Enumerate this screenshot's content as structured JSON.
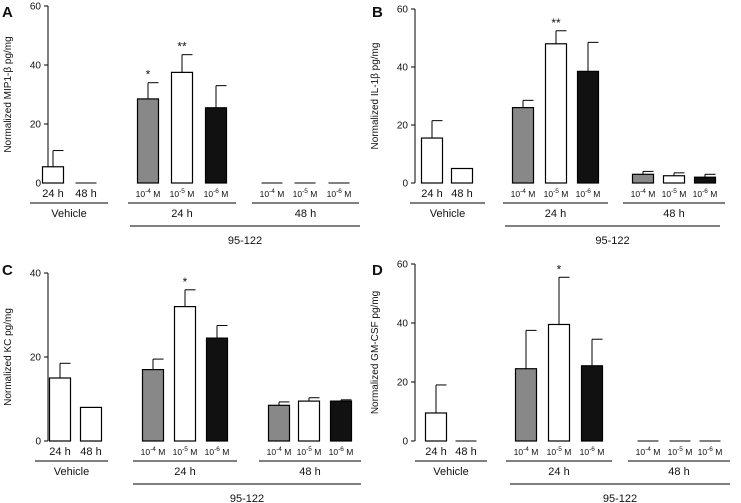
{
  "figure": {
    "compound_label": "95-122"
  },
  "chart_data": [
    {
      "type": "bar",
      "panel": "A",
      "ylabel": "Normalized MIP1-β pg/mg",
      "ylim": [
        0,
        60
      ],
      "yticks": [
        "0",
        "20",
        "40",
        "60"
      ],
      "groups": [
        {
          "label": "Vehicle",
          "categories": [
            {
              "label": "24 h",
              "value": 5.5,
              "err": 5.5,
              "fill": "#ffffff"
            },
            {
              "label": "48 h",
              "value": 0,
              "err": 0,
              "fill": "#ffffff"
            }
          ]
        },
        {
          "label": "24 h",
          "categories": [
            {
              "exp": "-4",
              "value": 28.5,
              "err": 5.5,
              "fill": "#888888",
              "sig": "*"
            },
            {
              "exp": "-5",
              "value": 37.5,
              "err": 6,
              "fill": "#ffffff",
              "sig": "**"
            },
            {
              "exp": "-6",
              "value": 25.5,
              "err": 7.5,
              "fill": "#111111"
            }
          ]
        },
        {
          "label": "48 h",
          "categories": [
            {
              "exp": "-4",
              "value": 0,
              "err": 0,
              "fill": "#888888"
            },
            {
              "exp": "-5",
              "value": 0,
              "err": 0,
              "fill": "#ffffff"
            },
            {
              "exp": "-6",
              "value": 0,
              "err": 0,
              "fill": "#111111"
            }
          ]
        }
      ]
    },
    {
      "type": "bar",
      "panel": "B",
      "ylabel": "Normalized IL-1β pg/mg",
      "ylim": [
        0,
        60
      ],
      "yticks": [
        "0",
        "20",
        "40",
        "60"
      ],
      "groups": [
        {
          "label": "Vehicle",
          "categories": [
            {
              "label": "24 h",
              "value": 15.5,
              "err": 6,
              "fill": "#ffffff"
            },
            {
              "label": "48 h",
              "value": 5,
              "err": 0,
              "fill": "#ffffff"
            }
          ]
        },
        {
          "label": "24 h",
          "categories": [
            {
              "exp": "-4",
              "value": 26,
              "err": 2.5,
              "fill": "#888888"
            },
            {
              "exp": "-5",
              "value": 48,
              "err": 4.5,
              "fill": "#ffffff",
              "sig": "**"
            },
            {
              "exp": "-6",
              "value": 38.5,
              "err": 10,
              "fill": "#111111"
            }
          ]
        },
        {
          "label": "48 h",
          "categories": [
            {
              "exp": "-4",
              "value": 3,
              "err": 1,
              "fill": "#888888"
            },
            {
              "exp": "-5",
              "value": 2.5,
              "err": 1,
              "fill": "#ffffff"
            },
            {
              "exp": "-6",
              "value": 2,
              "err": 1,
              "fill": "#111111"
            }
          ]
        }
      ]
    },
    {
      "type": "bar",
      "panel": "C",
      "ylabel": "Normalized KC pg/mg",
      "ylim": [
        0,
        40
      ],
      "yticks": [
        "0",
        "20",
        "40"
      ],
      "groups": [
        {
          "label": "Vehicle",
          "categories": [
            {
              "label": "24 h",
              "value": 15,
              "err": 3.5,
              "fill": "#ffffff"
            },
            {
              "label": "48 h",
              "value": 8,
              "err": 0,
              "fill": "#ffffff"
            }
          ]
        },
        {
          "label": "24 h",
          "categories": [
            {
              "exp": "-4",
              "value": 17,
              "err": 2.5,
              "fill": "#888888"
            },
            {
              "exp": "-5",
              "value": 32,
              "err": 4,
              "fill": "#ffffff",
              "sig": "*"
            },
            {
              "exp": "-6",
              "value": 24.5,
              "err": 3,
              "fill": "#111111"
            }
          ]
        },
        {
          "label": "48 h",
          "categories": [
            {
              "exp": "-4",
              "value": 8.5,
              "err": 0.8,
              "fill": "#888888"
            },
            {
              "exp": "-5",
              "value": 9.5,
              "err": 0.8,
              "fill": "#ffffff"
            },
            {
              "exp": "-6",
              "value": 9.5,
              "err": 0.3,
              "fill": "#111111"
            }
          ]
        }
      ]
    },
    {
      "type": "bar",
      "panel": "D",
      "ylabel": "Normalized GM-CSF pg/mg",
      "ylim": [
        0,
        60
      ],
      "yticks": [
        "0",
        "20",
        "40",
        "60"
      ],
      "groups": [
        {
          "label": "Vehicle",
          "categories": [
            {
              "label": "24 h",
              "value": 9.5,
              "err": 9.5,
              "fill": "#ffffff"
            },
            {
              "label": "48 h",
              "value": 0,
              "err": 0,
              "fill": "#ffffff"
            }
          ]
        },
        {
          "label": "24 h",
          "categories": [
            {
              "exp": "-4",
              "value": 24.5,
              "err": 13,
              "fill": "#888888"
            },
            {
              "exp": "-5",
              "value": 39.5,
              "err": 16,
              "fill": "#ffffff",
              "sig": "*"
            },
            {
              "exp": "-6",
              "value": 25.5,
              "err": 9,
              "fill": "#111111"
            }
          ]
        },
        {
          "label": "48 h",
          "categories": [
            {
              "exp": "-4",
              "value": 0,
              "err": 0,
              "fill": "#888888"
            },
            {
              "exp": "-5",
              "value": 0,
              "err": 0,
              "fill": "#ffffff"
            },
            {
              "exp": "-6",
              "value": 0,
              "err": 0,
              "fill": "#111111"
            }
          ]
        }
      ]
    }
  ]
}
